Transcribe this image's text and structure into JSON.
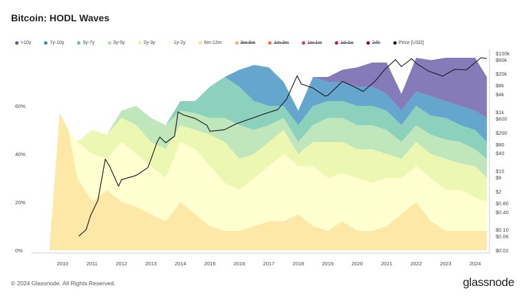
{
  "title": "Bitcoin: HODL Waves",
  "footer": "© 2024 Glassnode. All Rights Reserved.",
  "logo": "glassnode",
  "chart_data": {
    "type": "area",
    "title": "Bitcoin: HODL Waves",
    "stacked": true,
    "legend_position": "top",
    "legend": [
      {
        "name": ">10y",
        "color": "#5e4fa2",
        "visible": true
      },
      {
        "name": "7y-10y",
        "color": "#3288bd",
        "visible": true
      },
      {
        "name": "5y-7y",
        "color": "#66c2a5",
        "visible": true
      },
      {
        "name": "3y-5y",
        "color": "#abdda4",
        "visible": true
      },
      {
        "name": "2y-3y",
        "color": "#e6f598",
        "visible": true
      },
      {
        "name": "1y-2y",
        "color": "#ffffbf",
        "visible": true
      },
      {
        "name": "6m-12m",
        "color": "#fee08b",
        "visible": true
      },
      {
        "name": "3m-6m",
        "color": "#fdae61",
        "visible": false
      },
      {
        "name": "1m-3m",
        "color": "#f46d43",
        "visible": false
      },
      {
        "name": "1w-1m",
        "color": "#d53e4f",
        "visible": false
      },
      {
        "name": "1d-1w",
        "color": "#c2185b",
        "visible": false
      },
      {
        "name": "24h",
        "color": "#9e0142",
        "visible": false
      },
      {
        "name": "Price [USD]",
        "color": "#222222",
        "visible": true
      }
    ],
    "x_ticks": [
      "2010",
      "2011",
      "2012",
      "2013",
      "2014",
      "2015",
      "2016",
      "2017",
      "2018",
      "2019",
      "2020",
      "2021",
      "2022",
      "2023",
      "2024"
    ],
    "y_left_ticks": [
      "0%",
      "20%",
      "40%",
      "60%"
    ],
    "y_left_range": [
      0,
      82
    ],
    "y_right_ticks": [
      "$100k",
      "$60k",
      "$20k",
      "$8k",
      "$4k",
      "$1k",
      "$600",
      "$200",
      "$80",
      "$40",
      "$10",
      "$6",
      "$2",
      "$0.80",
      "$0.40",
      "$0.10",
      "$0.06",
      "$0.02"
    ],
    "y_right_scale": "log",
    "y_right_range": [
      0.02,
      100000
    ],
    "band_order": [
      "6m-12m",
      "1y-2y",
      "2y-3y",
      "3y-5y",
      "5y-7y",
      "7y-10y",
      ">10y"
    ],
    "x": [
      2009.55,
      2009.9,
      2010.2,
      2010.5,
      2011.0,
      2011.5,
      2012.0,
      2012.5,
      2013.0,
      2013.5,
      2014.0,
      2014.5,
      2015.0,
      2015.5,
      2016.0,
      2016.5,
      2017.0,
      2017.5,
      2018.0,
      2018.5,
      2019.0,
      2019.5,
      2020.0,
      2020.5,
      2021.0,
      2021.5,
      2022.0,
      2022.5,
      2023.0,
      2023.5,
      2024.0,
      2024.4
    ],
    "shares_percent": [
      [
        0,
        0,
        0,
        0,
        0,
        0,
        0
      ],
      [
        57,
        0,
        0,
        0,
        0,
        0,
        0
      ],
      [
        50,
        0,
        0,
        0,
        0,
        0,
        0
      ],
      [
        30,
        15,
        0,
        0,
        0,
        0,
        0
      ],
      [
        20,
        20,
        10,
        0,
        0,
        0,
        0
      ],
      [
        25,
        13,
        10,
        0,
        0,
        0,
        0
      ],
      [
        20,
        25,
        10,
        3,
        0,
        0,
        0
      ],
      [
        18,
        22,
        12,
        8,
        0,
        0,
        0
      ],
      [
        15,
        20,
        10,
        10,
        0,
        0,
        0
      ],
      [
        12,
        18,
        12,
        10,
        0,
        0,
        0
      ],
      [
        20,
        25,
        7,
        6,
        4,
        0,
        0
      ],
      [
        15,
        27,
        8,
        7,
        5,
        0,
        0
      ],
      [
        10,
        25,
        13,
        7,
        13,
        0,
        0
      ],
      [
        8,
        20,
        17,
        10,
        17,
        0,
        0
      ],
      [
        8,
        17,
        13,
        14,
        16,
        7,
        0
      ],
      [
        10,
        20,
        10,
        10,
        12,
        15,
        0
      ],
      [
        12,
        23,
        10,
        7,
        8,
        16,
        0
      ],
      [
        12,
        28,
        10,
        5,
        5,
        10,
        0
      ],
      [
        15,
        20,
        5,
        5,
        7,
        6,
        0
      ],
      [
        10,
        25,
        10,
        7,
        8,
        12,
        0
      ],
      [
        8,
        22,
        15,
        10,
        7,
        8,
        2
      ],
      [
        12,
        20,
        13,
        10,
        7,
        8,
        5
      ],
      [
        8,
        22,
        12,
        10,
        8,
        8,
        8
      ],
      [
        8,
        20,
        14,
        10,
        8,
        8,
        10
      ],
      [
        10,
        20,
        10,
        10,
        8,
        7,
        13
      ],
      [
        15,
        15,
        8,
        7,
        7,
        6,
        7
      ],
      [
        20,
        15,
        10,
        7,
        8,
        6,
        14
      ],
      [
        12,
        18,
        10,
        8,
        8,
        8,
        15
      ],
      [
        8,
        17,
        13,
        8,
        9,
        7,
        18
      ],
      [
        8,
        17,
        11,
        9,
        7,
        8,
        20
      ],
      [
        8,
        14,
        13,
        7,
        8,
        8,
        22
      ],
      [
        8,
        12,
        10,
        8,
        7,
        10,
        17
      ]
    ],
    "price": {
      "x": [
        2010.55,
        2010.8,
        2010.95,
        2011.2,
        2011.45,
        2011.6,
        2011.9,
        2012.0,
        2012.5,
        2012.9,
        2013.2,
        2013.3,
        2013.5,
        2013.8,
        2013.92,
        2014.1,
        2014.5,
        2014.9,
        2015.0,
        2015.5,
        2015.9,
        2016.5,
        2016.9,
        2017.3,
        2017.6,
        2017.96,
        2018.1,
        2018.5,
        2018.9,
        2019.0,
        2019.5,
        2019.9,
        2020.2,
        2020.6,
        2020.95,
        2021.3,
        2021.5,
        2021.85,
        2022.0,
        2022.4,
        2022.9,
        2023.3,
        2023.7,
        2023.95,
        2024.2,
        2024.4
      ],
      "y": [
        0.06,
        0.1,
        0.3,
        1,
        25,
        14,
        3,
        5,
        7,
        13,
        90,
        140,
        90,
        150,
        1000,
        800,
        600,
        350,
        220,
        250,
        400,
        650,
        900,
        1200,
        2700,
        17000,
        9000,
        6500,
        3500,
        3600,
        11000,
        7200,
        5000,
        11000,
        29000,
        60000,
        35000,
        65000,
        45000,
        25000,
        16500,
        28000,
        27000,
        43000,
        70000,
        65000
      ]
    }
  }
}
